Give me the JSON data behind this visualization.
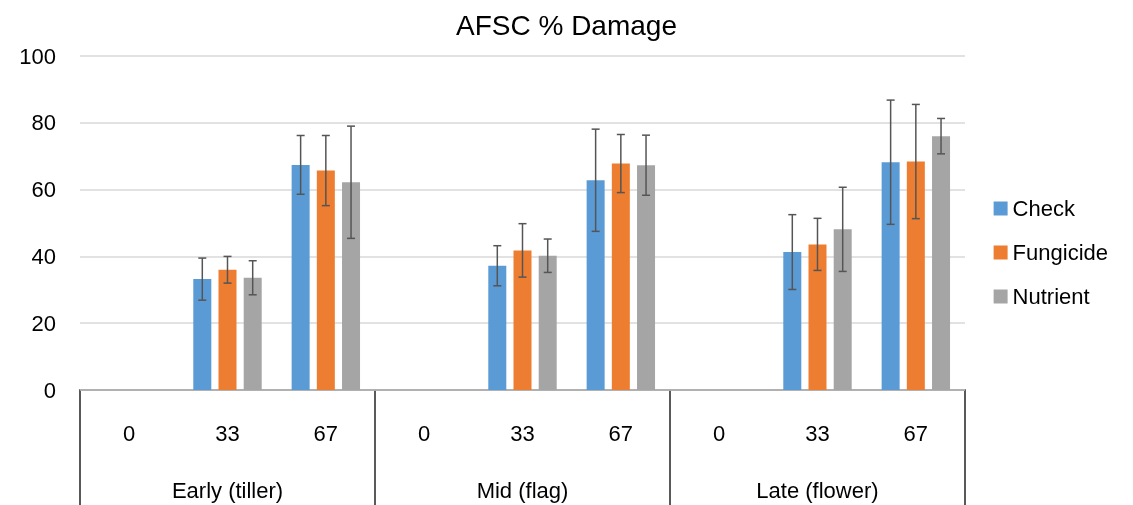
{
  "chart_data": {
    "type": "bar",
    "title": "AFSC % Damage",
    "categories": [
      "0",
      "33",
      "67",
      "0",
      "33",
      "67",
      "0",
      "33",
      "67"
    ],
    "annotations": [
      "Early (tiller)",
      "Mid (flag)",
      "Late (flower)"
    ],
    "series": [
      {
        "name": "Check",
        "color": "#5b9bd5",
        "values": [
          null,
          33.2,
          67.4,
          null,
          37.2,
          62.8,
          null,
          41.3,
          68.2
        ],
        "errors": [
          null,
          6.3,
          8.8,
          null,
          6,
          15.3,
          null,
          11.2,
          18.6
        ]
      },
      {
        "name": "Fungicide",
        "color": "#ed7d31",
        "values": [
          null,
          36,
          65.7,
          null,
          41.8,
          67.8,
          null,
          43.6,
          68.4
        ],
        "errors": [
          null,
          4,
          10.5,
          null,
          8,
          8.7,
          null,
          7.8,
          17.1
        ]
      },
      {
        "name": "Nutrient",
        "color": "#a5a5a5",
        "values": [
          null,
          33.6,
          62.2,
          null,
          40.2,
          67.3,
          null,
          48.1,
          76
        ],
        "errors": [
          null,
          5.1,
          16.8,
          null,
          5,
          9,
          null,
          12.6,
          5.3
        ]
      }
    ],
    "ylim": [
      0,
      100
    ],
    "yticks": [
      0,
      20,
      40,
      60,
      80,
      100
    ],
    "grid": "y",
    "legend": "right"
  }
}
